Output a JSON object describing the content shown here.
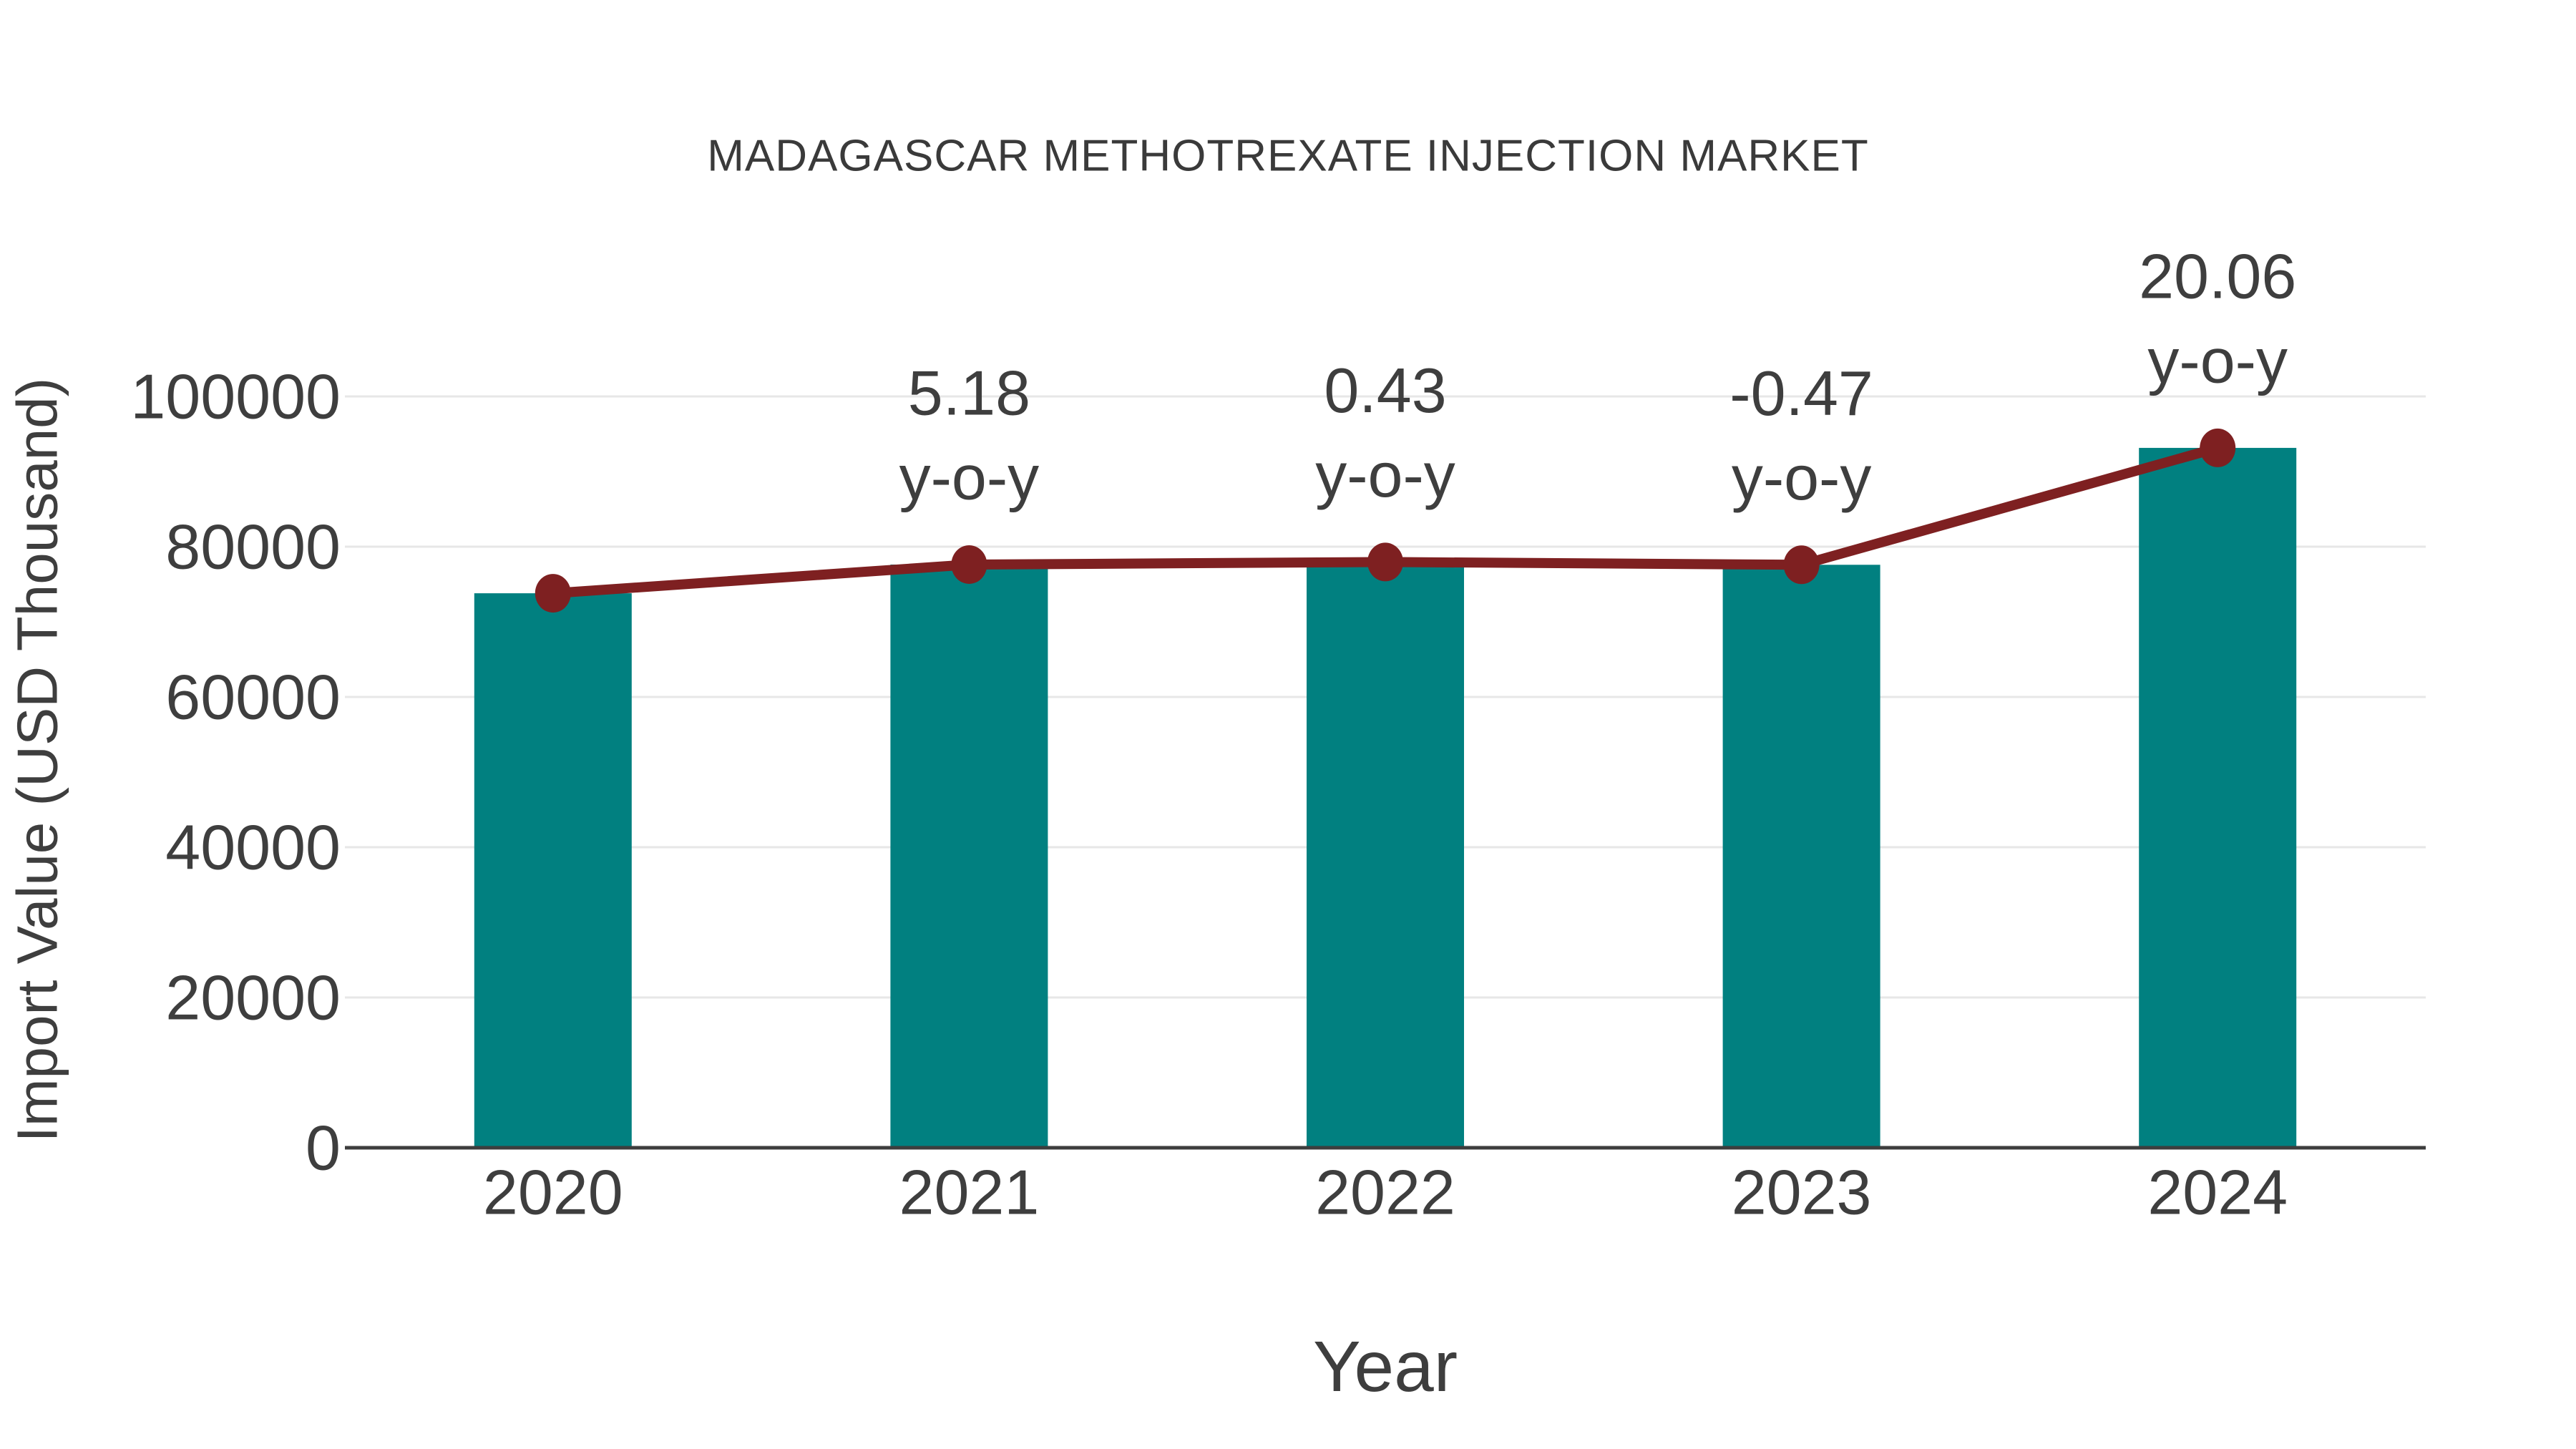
{
  "chart_data": {
    "type": "bar",
    "title": "MADAGASCAR METHOTREXATE INJECTION MARKET",
    "xlabel": "Year",
    "ylabel": "Import Value (USD Thousand)",
    "categories": [
      "2020",
      "2021",
      "2022",
      "2023",
      "2024"
    ],
    "series": [
      {
        "name": "Import Value bars",
        "type": "bar",
        "color": "#018080",
        "values": [
          73800,
          77620,
          77960,
          77590,
          93150
        ]
      },
      {
        "name": "Import Value trend",
        "type": "line",
        "color": "#7E2021",
        "values": [
          73800,
          77620,
          77960,
          77590,
          93150
        ]
      }
    ],
    "yoy_labels": [
      {
        "category": "2021",
        "value": "5.18",
        "suffix": "y-o-y"
      },
      {
        "category": "2022",
        "value": "0.43",
        "suffix": "y-o-y"
      },
      {
        "category": "2023",
        "value": "-0.47",
        "suffix": "y-o-y"
      },
      {
        "category": "2024",
        "value": "20.06",
        "suffix": "y-o-y"
      }
    ],
    "yticks": [
      "0",
      "20000",
      "40000",
      "60000",
      "80000",
      "100000"
    ],
    "ytick_values": [
      0,
      20000,
      40000,
      60000,
      80000,
      100000
    ],
    "ylim": [
      0,
      110000
    ],
    "grid": true,
    "legend_position": "none",
    "colors": {
      "bar": "#018080",
      "line": "#7E2021",
      "marker": "#7E2021",
      "grid": "#E7E7E7",
      "axis_line": "#3D3D3D",
      "text": "#3E3E3E",
      "background": "#FFFFFF"
    }
  }
}
